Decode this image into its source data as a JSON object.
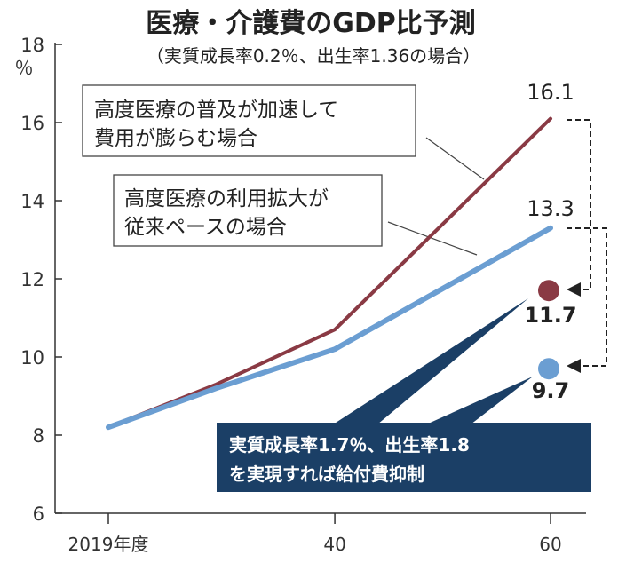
{
  "chart_data": {
    "type": "line",
    "title": "医療・介護費のGDP比予測",
    "subtitle": "（実質成長率0.2％、出生率1.36の場合）",
    "y_unit": "％",
    "ylim": [
      6,
      18
    ],
    "y_ticks": [
      "6",
      "8",
      "10",
      "12",
      "14",
      "16",
      "18"
    ],
    "x_ticks": [
      {
        "value": 2019,
        "label": "2019年度"
      },
      {
        "value": 2040,
        "label": "40"
      },
      {
        "value": 2060,
        "label": "60"
      }
    ],
    "grid": false,
    "series": [
      {
        "color": "#8a3a44",
        "callout": [
          "高度医療の普及が加速して",
          "費用が膨らむ場合"
        ],
        "x": [
          2019,
          2029,
          2040,
          2060
        ],
        "values": [
          8.2,
          9.3,
          10.7,
          16.1
        ],
        "end_label": "16.1"
      },
      {
        "color": "#6b9ed2",
        "callout": [
          "高度医療の利用拡大が",
          "従来ペースの場合"
        ],
        "x": [
          2019,
          2029,
          2040,
          2060
        ],
        "values": [
          8.2,
          9.2,
          10.2,
          13.3
        ],
        "end_label": "13.3"
      }
    ],
    "alternative_points": [
      {
        "x": 2060,
        "value": 11.7,
        "label": "11.7",
        "color": "#8a3a44"
      },
      {
        "x": 2060,
        "value": 9.7,
        "label": "9.7",
        "color": "#6b9ed2"
      }
    ],
    "note": [
      "実質成長率1.7％、出生率1.8",
      "を実現すれば給付費抑制"
    ],
    "note_color": "#1b3f66"
  }
}
